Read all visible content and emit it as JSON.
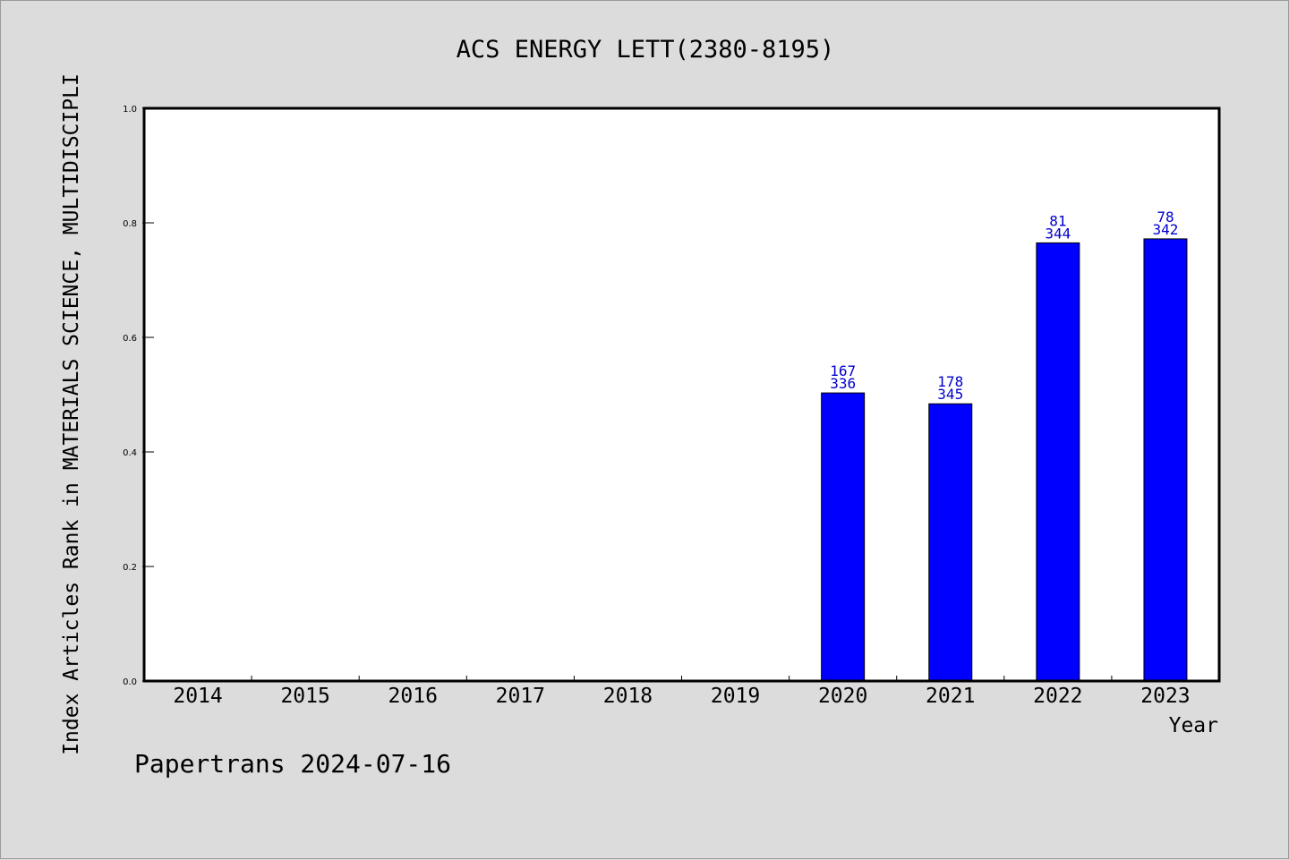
{
  "chart_data": {
    "type": "bar",
    "title": "ACS ENERGY LETT(2380-8195)",
    "xlabel": "Year",
    "ylabel": "Index Articles Rank in MATERIALS SCIENCE, MULTIDISCIPLI",
    "categories": [
      "2014",
      "2015",
      "2016",
      "2017",
      "2018",
      "2019",
      "2020",
      "2021",
      "2022",
      "2023"
    ],
    "values": [
      null,
      null,
      null,
      null,
      null,
      null,
      0.503,
      0.484,
      0.765,
      0.772
    ],
    "bar_labels": [
      null,
      null,
      null,
      null,
      null,
      null,
      [
        "167",
        "336"
      ],
      [
        "178",
        "345"
      ],
      [
        "81",
        "344"
      ],
      [
        "78",
        "342"
      ]
    ],
    "ylim": [
      0,
      1.0
    ],
    "yticks": [
      "0.0",
      "0.2",
      "0.4",
      "0.6",
      "0.8",
      "1.0"
    ],
    "grid": false,
    "colors": {
      "bar": "#0000ff",
      "label": "#0000cc",
      "background": "#dcdcdc",
      "plot_area": "#ffffff"
    }
  },
  "footer": "Papertrans 2024-07-16"
}
